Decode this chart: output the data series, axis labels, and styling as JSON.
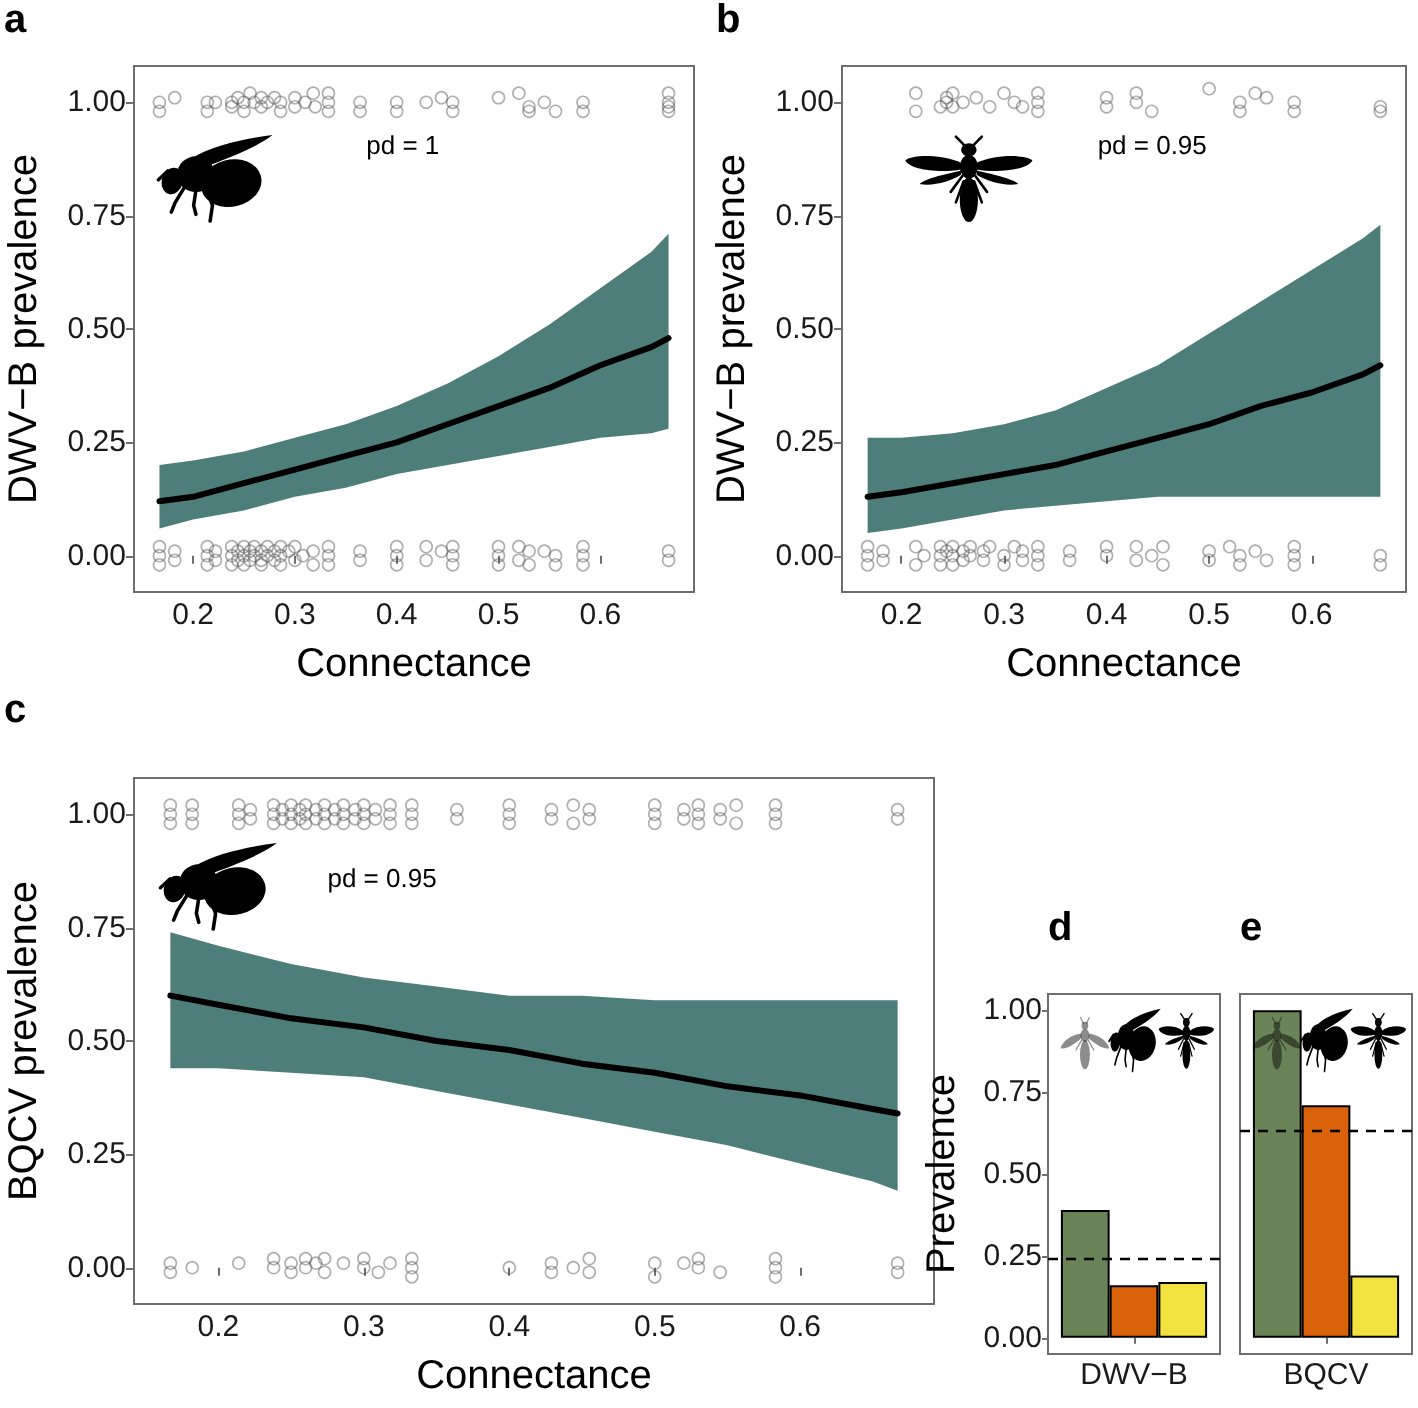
{
  "chart_data": [
    {
      "type": "line",
      "title": "a",
      "xlabel": "Connectance",
      "ylabel": "DWV−B prevalence",
      "annotations": [
        "pd = 1"
      ],
      "xlim": [
        0.142,
        0.692
      ],
      "xticks": [
        0.2,
        0.3,
        0.4,
        0.5,
        0.6
      ],
      "ylim": [
        -0.08,
        1.08
      ],
      "yticks": [
        {
          "value": 0,
          "label": "0.00"
        },
        {
          "value": 0.25,
          "label": "0.25"
        },
        {
          "value": 0.5,
          "label": "0.50"
        },
        {
          "value": 0.75,
          "label": "0.75"
        },
        {
          "value": 1,
          "label": "1.00"
        }
      ],
      "series": [
        {
          "type": "scatter",
          "marker": "circle",
          "color": "#4d4d4d",
          "x": [
            0.167,
            0.167,
            0.182,
            0.214,
            0.214,
            0.222,
            0.238,
            0.238,
            0.244,
            0.25,
            0.25,
            0.256,
            0.26,
            0.267,
            0.267,
            0.273,
            0.28,
            0.286,
            0.286,
            0.3,
            0.3,
            0.31,
            0.318,
            0.32,
            0.333,
            0.333,
            0.333,
            0.364,
            0.364,
            0.4,
            0.4,
            0.429,
            0.444,
            0.455,
            0.455,
            0.5,
            0.52,
            0.53,
            0.53,
            0.545,
            0.556,
            0.583,
            0.583,
            0.667,
            0.667,
            0.667,
            0.667
          ],
          "values": [
            1,
            0.98,
            1.01,
            1,
            0.98,
            1,
            1,
            0.99,
            1.01,
            1,
            0.98,
            1.02,
            1,
            1.01,
            0.99,
            1,
            1.01,
            0.98,
            1,
            1.01,
            0.99,
            1,
            1.02,
            0.99,
            1,
            0.98,
            1.02,
            1,
            0.98,
            1,
            0.98,
            1,
            1.01,
            1,
            0.98,
            1.01,
            1.02,
            0.99,
            0.98,
            1,
            0.98,
            1,
            0.98,
            1.02,
            1,
            0.99,
            0.98
          ]
        },
        {
          "type": "scatter",
          "marker": "circle",
          "color": "#4d4d4d",
          "x": [
            0.167,
            0.167,
            0.167,
            0.182,
            0.182,
            0.214,
            0.214,
            0.214,
            0.222,
            0.222,
            0.238,
            0.238,
            0.238,
            0.244,
            0.244,
            0.25,
            0.25,
            0.25,
            0.256,
            0.256,
            0.26,
            0.26,
            0.267,
            0.267,
            0.267,
            0.273,
            0.273,
            0.28,
            0.28,
            0.286,
            0.286,
            0.286,
            0.294,
            0.3,
            0.3,
            0.308,
            0.318,
            0.318,
            0.333,
            0.333,
            0.333,
            0.364,
            0.364,
            0.4,
            0.4,
            0.4,
            0.429,
            0.429,
            0.444,
            0.455,
            0.455,
            0.455,
            0.5,
            0.5,
            0.5,
            0.52,
            0.52,
            0.53,
            0.53,
            0.545,
            0.556,
            0.556,
            0.583,
            0.583,
            0.583,
            0.667,
            0.667
          ],
          "values": [
            0.02,
            0,
            -0.02,
            0.01,
            -0.01,
            0.02,
            0,
            -0.02,
            0.01,
            -0.01,
            0.02,
            0,
            -0.02,
            0.01,
            -0.01,
            0.02,
            0,
            -0.02,
            0.01,
            -0.01,
            0.02,
            0,
            0.01,
            -0.01,
            -0.02,
            0.02,
            0,
            0.01,
            -0.01,
            0.02,
            0,
            -0.02,
            0.01,
            0.02,
            -0.01,
            0,
            0.01,
            -0.02,
            0.02,
            0,
            -0.02,
            0.01,
            -0.01,
            0.02,
            0,
            -0.02,
            0.02,
            -0.01,
            0.01,
            0.02,
            0,
            -0.02,
            0.02,
            0,
            -0.02,
            0.02,
            -0.01,
            0.01,
            -0.02,
            0.01,
            0,
            -0.02,
            0.02,
            0,
            -0.02,
            0.01,
            -0.01
          ]
        },
        {
          "marker": "none",
          "color": "#000000",
          "x": [
            0.167,
            0.2,
            0.25,
            0.3,
            0.35,
            0.4,
            0.45,
            0.5,
            0.55,
            0.6,
            0.65,
            0.667
          ],
          "values": [
            0.12,
            0.13,
            0.16,
            0.19,
            0.22,
            0.25,
            0.29,
            0.33,
            0.37,
            0.42,
            0.46,
            0.48
          ],
          "lower": [
            0.06,
            0.08,
            0.1,
            0.13,
            0.15,
            0.18,
            0.2,
            0.22,
            0.24,
            0.26,
            0.27,
            0.28
          ],
          "upper": [
            0.2,
            0.21,
            0.23,
            0.26,
            0.29,
            0.33,
            0.38,
            0.44,
            0.51,
            0.59,
            0.67,
            0.71
          ]
        }
      ]
    },
    {
      "type": "line",
      "title": "b",
      "xlabel": "Connectance",
      "ylabel": "DWV−B prevalence",
      "annotations": [
        "pd = 0.95"
      ],
      "xlim": [
        0.142,
        0.692
      ],
      "xticks": [
        0.2,
        0.3,
        0.4,
        0.5,
        0.6
      ],
      "ylim": [
        -0.08,
        1.08
      ],
      "yticks": [
        {
          "value": 0,
          "label": "0.00"
        },
        {
          "value": 0.25,
          "label": "0.25"
        },
        {
          "value": 0.5,
          "label": "0.50"
        },
        {
          "value": 0.75,
          "label": "0.75"
        },
        {
          "value": 1,
          "label": "1.00"
        }
      ],
      "series": [
        {
          "type": "scatter",
          "marker": "circle",
          "color": "#4d4d4d",
          "x": [
            0.214,
            0.214,
            0.238,
            0.244,
            0.244,
            0.25,
            0.25,
            0.26,
            0.273,
            0.286,
            0.3,
            0.31,
            0.318,
            0.333,
            0.333,
            0.333,
            0.4,
            0.4,
            0.429,
            0.429,
            0.444,
            0.5,
            0.53,
            0.53,
            0.545,
            0.556,
            0.583,
            0.583,
            0.667,
            0.667
          ],
          "values": [
            1.02,
            0.98,
            0.99,
            1.01,
            1,
            1.02,
            0.99,
            1,
            1.01,
            0.99,
            1.02,
            1,
            0.99,
            1.02,
            1,
            0.98,
            1.01,
            0.99,
            1.02,
            1,
            0.98,
            1.03,
            1,
            0.98,
            1.02,
            1.01,
            1,
            0.98,
            0.99,
            0.98
          ]
        },
        {
          "type": "scatter",
          "marker": "circle",
          "color": "#4d4d4d",
          "x": [
            0.167,
            0.167,
            0.167,
            0.182,
            0.182,
            0.214,
            0.214,
            0.222,
            0.238,
            0.238,
            0.238,
            0.244,
            0.25,
            0.25,
            0.25,
            0.26,
            0.26,
            0.267,
            0.267,
            0.28,
            0.28,
            0.286,
            0.3,
            0.3,
            0.31,
            0.318,
            0.318,
            0.333,
            0.333,
            0.333,
            0.364,
            0.364,
            0.4,
            0.4,
            0.429,
            0.429,
            0.444,
            0.455,
            0.455,
            0.5,
            0.5,
            0.52,
            0.53,
            0.53,
            0.545,
            0.556,
            0.583,
            0.583,
            0.583,
            0.667,
            0.667
          ],
          "values": [
            0.02,
            0,
            -0.02,
            0.01,
            -0.01,
            0.02,
            -0.02,
            0,
            0.02,
            0,
            -0.02,
            0.01,
            0.02,
            0,
            -0.02,
            0.01,
            -0.01,
            0.02,
            0,
            0.01,
            -0.01,
            0.02,
            0,
            -0.02,
            0.02,
            0.01,
            -0.01,
            0.02,
            0,
            -0.02,
            0.01,
            -0.01,
            0.02,
            0,
            0.02,
            -0.01,
            0,
            0.02,
            -0.02,
            0.01,
            -0.01,
            0.02,
            0,
            -0.02,
            0.01,
            -0.01,
            0.02,
            0,
            -0.02,
            0,
            -0.02
          ]
        },
        {
          "marker": "none",
          "color": "#000000",
          "x": [
            0.167,
            0.2,
            0.25,
            0.3,
            0.35,
            0.4,
            0.45,
            0.5,
            0.55,
            0.6,
            0.65,
            0.667
          ],
          "values": [
            0.13,
            0.14,
            0.16,
            0.18,
            0.2,
            0.23,
            0.26,
            0.29,
            0.33,
            0.36,
            0.4,
            0.42
          ],
          "lower": [
            0.05,
            0.06,
            0.08,
            0.1,
            0.11,
            0.12,
            0.13,
            0.13,
            0.13,
            0.13,
            0.13,
            0.13
          ],
          "upper": [
            0.26,
            0.26,
            0.27,
            0.29,
            0.32,
            0.37,
            0.42,
            0.49,
            0.56,
            0.63,
            0.7,
            0.73
          ]
        }
      ]
    },
    {
      "type": "line",
      "title": "c",
      "xlabel": "Connectance",
      "ylabel": "BQCV prevalence",
      "annotations": [
        "pd = 0.95"
      ],
      "xlim": [
        0.142,
        0.692
      ],
      "xticks": [
        0.2,
        0.3,
        0.4,
        0.5,
        0.6
      ],
      "ylim": [
        -0.08,
        1.08
      ],
      "yticks": [
        {
          "value": 0,
          "label": "0.00"
        },
        {
          "value": 0.25,
          "label": "0.25"
        },
        {
          "value": 0.5,
          "label": "0.50"
        },
        {
          "value": 0.75,
          "label": "0.75"
        },
        {
          "value": 1,
          "label": "1.00"
        }
      ],
      "series": [
        {
          "type": "scatter",
          "marker": "circle",
          "color": "#4d4d4d",
          "x": [
            0.167,
            0.167,
            0.167,
            0.182,
            0.182,
            0.182,
            0.214,
            0.214,
            0.214,
            0.222,
            0.222,
            0.238,
            0.238,
            0.238,
            0.244,
            0.244,
            0.25,
            0.25,
            0.25,
            0.256,
            0.256,
            0.26,
            0.26,
            0.26,
            0.267,
            0.267,
            0.273,
            0.273,
            0.273,
            0.28,
            0.28,
            0.286,
            0.286,
            0.286,
            0.294,
            0.294,
            0.3,
            0.3,
            0.3,
            0.308,
            0.308,
            0.318,
            0.318,
            0.318,
            0.333,
            0.333,
            0.333,
            0.364,
            0.364,
            0.4,
            0.4,
            0.4,
            0.429,
            0.429,
            0.444,
            0.444,
            0.455,
            0.455,
            0.5,
            0.5,
            0.5,
            0.52,
            0.52,
            0.53,
            0.53,
            0.53,
            0.545,
            0.545,
            0.556,
            0.556,
            0.583,
            0.583,
            0.583,
            0.667,
            0.667
          ],
          "values": [
            1.02,
            1,
            0.98,
            1.02,
            1,
            0.98,
            1.02,
            1,
            0.98,
            1.01,
            0.99,
            1.02,
            1,
            0.98,
            1.01,
            0.99,
            1.02,
            1,
            0.98,
            1.01,
            0.99,
            1.02,
            1,
            0.98,
            1.01,
            0.99,
            1.02,
            1,
            0.98,
            1.01,
            0.99,
            1.02,
            1,
            0.98,
            1.01,
            0.99,
            1.02,
            1,
            0.98,
            1.01,
            0.99,
            1.02,
            1,
            0.98,
            1.02,
            1,
            0.98,
            1.01,
            0.99,
            1.02,
            1,
            0.98,
            1.01,
            0.99,
            1.02,
            0.98,
            1.01,
            0.99,
            1.02,
            1,
            0.98,
            1.01,
            0.99,
            1.02,
            1,
            0.98,
            1.01,
            0.99,
            1.02,
            0.98,
            1.02,
            1,
            0.98,
            1.01,
            0.99
          ]
        },
        {
          "type": "scatter",
          "marker": "circle",
          "color": "#4d4d4d",
          "x": [
            0.167,
            0.167,
            0.182,
            0.214,
            0.238,
            0.238,
            0.25,
            0.25,
            0.26,
            0.26,
            0.267,
            0.273,
            0.273,
            0.286,
            0.3,
            0.3,
            0.31,
            0.318,
            0.333,
            0.333,
            0.333,
            0.4,
            0.429,
            0.429,
            0.444,
            0.455,
            0.455,
            0.5,
            0.5,
            0.52,
            0.53,
            0.53,
            0.545,
            0.583,
            0.583,
            0.583,
            0.667,
            0.667
          ],
          "values": [
            0.01,
            -0.01,
            0,
            0.01,
            0.02,
            0,
            0.01,
            -0.01,
            0.02,
            0,
            0.01,
            0.02,
            -0.01,
            0.01,
            0.02,
            0,
            -0.01,
            0.01,
            0.02,
            0,
            -0.02,
            0,
            0.01,
            -0.01,
            0,
            0.02,
            -0.01,
            0.01,
            -0.02,
            0.01,
            0.02,
            0,
            -0.01,
            0.02,
            0,
            -0.02,
            0.01,
            -0.01
          ]
        },
        {
          "marker": "none",
          "color": "#000000",
          "x": [
            0.167,
            0.2,
            0.25,
            0.3,
            0.35,
            0.4,
            0.45,
            0.5,
            0.55,
            0.6,
            0.65,
            0.667
          ],
          "values": [
            0.6,
            0.58,
            0.55,
            0.53,
            0.5,
            0.48,
            0.45,
            0.43,
            0.4,
            0.38,
            0.35,
            0.34
          ],
          "lower": [
            0.44,
            0.44,
            0.43,
            0.42,
            0.39,
            0.36,
            0.33,
            0.3,
            0.27,
            0.23,
            0.19,
            0.17
          ],
          "upper": [
            0.74,
            0.71,
            0.67,
            0.64,
            0.62,
            0.6,
            0.6,
            0.59,
            0.59,
            0.59,
            0.59,
            0.59
          ]
        }
      ]
    },
    {
      "type": "bar",
      "title": "d",
      "ylabel": "Prevalence",
      "categories": [
        "DWV−B"
      ],
      "ylim": [
        -0.05,
        1.05
      ],
      "yticks": [
        {
          "value": 0,
          "label": "0.00"
        },
        {
          "value": 0.25,
          "label": "0.25"
        },
        {
          "value": 0.5,
          "label": "0.50"
        },
        {
          "value": 0.75,
          "label": "0.75"
        },
        {
          "value": 1,
          "label": "1.00"
        }
      ],
      "series": [
        {
          "color": "#6a8457",
          "values": [
            0.39
          ]
        },
        {
          "color": "#d9620b",
          "values": [
            0.16
          ]
        },
        {
          "color": "#f2e23f",
          "values": [
            0.17
          ]
        }
      ],
      "ref_lines": [
        {
          "axis": "y",
          "value": 0.24,
          "color": "#000000",
          "line_style": "dashed"
        }
      ]
    },
    {
      "type": "bar",
      "title": "e",
      "categories": [
        "BQCV"
      ],
      "ylim": [
        -0.05,
        1.05
      ],
      "tick_labels": "x",
      "series": [
        {
          "color": "#6a8457",
          "values": [
            1
          ]
        },
        {
          "color": "#d9620b",
          "values": [
            0.71
          ]
        },
        {
          "color": "#f2e23f",
          "values": [
            0.19
          ]
        }
      ],
      "ref_lines": [
        {
          "axis": "y",
          "value": 0.63,
          "color": "#000000",
          "line_style": "dashed"
        }
      ]
    }
  ]
}
